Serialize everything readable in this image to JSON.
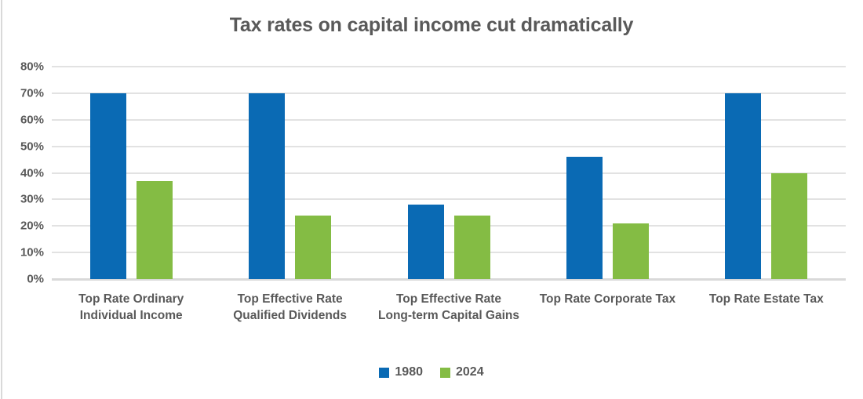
{
  "chart_data": {
    "type": "bar",
    "title": "Tax rates on capital income cut dramatically",
    "categories": [
      "Top Rate Ordinary Individual Income",
      "Top Effective Rate Qualified Dividends",
      "Top Effective Rate Long-term Capital Gains",
      "Top Rate Corporate Tax",
      "Top Rate Estate Tax"
    ],
    "series": [
      {
        "name": "1980",
        "color": "#0a6ab4",
        "values": [
          70,
          70,
          28,
          46,
          70
        ]
      },
      {
        "name": "2024",
        "color": "#84bc44",
        "values": [
          37,
          24,
          24,
          21,
          40
        ]
      }
    ],
    "ylim": [
      0,
      80
    ],
    "ytick_step": 10,
    "ytick_labels": [
      "0%",
      "10%",
      "20%",
      "30%",
      "40%",
      "50%",
      "60%",
      "70%",
      "80%"
    ],
    "grid": true,
    "legend_position": "bottom",
    "xlabel": "",
    "ylabel": ""
  },
  "colors": {
    "text": "#595959",
    "gridline": "#e2e2e2",
    "axis_line": "#d9d9d9",
    "frame_border": "#d9d9d9",
    "background": "#ffffff"
  }
}
